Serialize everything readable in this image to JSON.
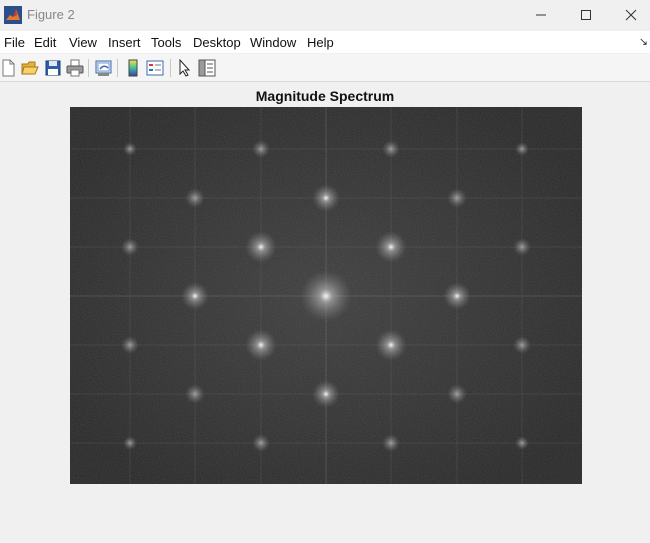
{
  "window": {
    "title": "Figure 2",
    "app_icon": "matlab-logo-icon",
    "controls": [
      "minimize-icon",
      "maximize-icon",
      "close-icon"
    ]
  },
  "menubar": {
    "items": [
      {
        "label": "File"
      },
      {
        "label": "Edit"
      },
      {
        "label": "View"
      },
      {
        "label": "Insert"
      },
      {
        "label": "Tools"
      },
      {
        "label": "Desktop"
      },
      {
        "label": "Window"
      },
      {
        "label": "Help"
      }
    ],
    "overflow_glyph": "↘"
  },
  "toolbar": {
    "buttons": [
      "new-figure-icon",
      "open-file-icon",
      "save-figure-icon",
      "print-figure-icon",
      "link-plot-icon",
      "insert-colorbar-icon",
      "insert-legend-icon",
      "edit-plot-icon",
      "open-property-inspector-icon"
    ]
  },
  "figure": {
    "title": "Magnitude Spectrum",
    "colormap": "gray",
    "background_color": "#333333"
  }
}
